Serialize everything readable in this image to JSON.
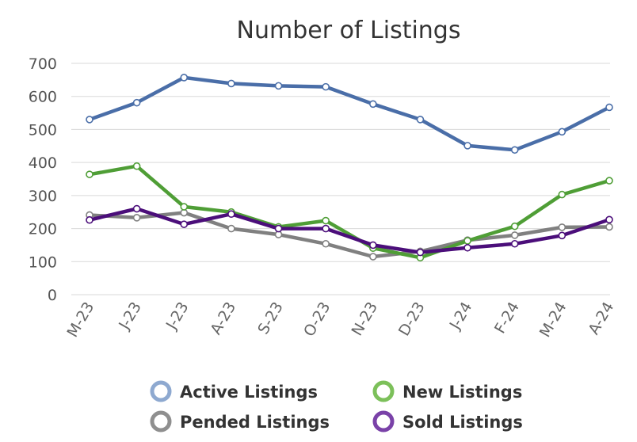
{
  "chart_data": {
    "type": "line",
    "title": "Number of Listings",
    "xlabel": "",
    "ylabel": "",
    "categories": [
      "M-23",
      "J-23",
      "J-23",
      "A-23",
      "S-23",
      "O-23",
      "N-23",
      "D-23",
      "J-24",
      "F-24",
      "M-24",
      "A-24"
    ],
    "y_ticks": [
      "0",
      "100",
      "200",
      "300",
      "400",
      "500",
      "600",
      "700"
    ],
    "ylim": [
      0,
      700
    ],
    "grid": true,
    "legend_position": "bottom",
    "series": [
      {
        "name": "Active Listings",
        "color": "#4a6ea8",
        "legend_color": "#8ea9d0",
        "values": [
          530,
          581,
          657,
          639,
          632,
          629,
          577,
          530,
          451,
          438,
          493,
          567
        ]
      },
      {
        "name": "New Listings",
        "color": "#4f9e36",
        "legend_color": "#7cc05a",
        "values": [
          364,
          389,
          266,
          250,
          205,
          224,
          141,
          112,
          163,
          207,
          303,
          345
        ]
      },
      {
        "name": "Pended Listings",
        "color": "#808080",
        "legend_color": "#8f8f8f",
        "values": [
          241,
          233,
          248,
          200,
          182,
          154,
          115,
          131,
          165,
          180,
          204,
          205
        ]
      },
      {
        "name": "Sold Listings",
        "color": "#4b0e7a",
        "legend_color": "#7a42a8",
        "values": [
          226,
          260,
          213,
          244,
          200,
          200,
          150,
          128,
          142,
          154,
          179,
          227
        ]
      }
    ]
  }
}
